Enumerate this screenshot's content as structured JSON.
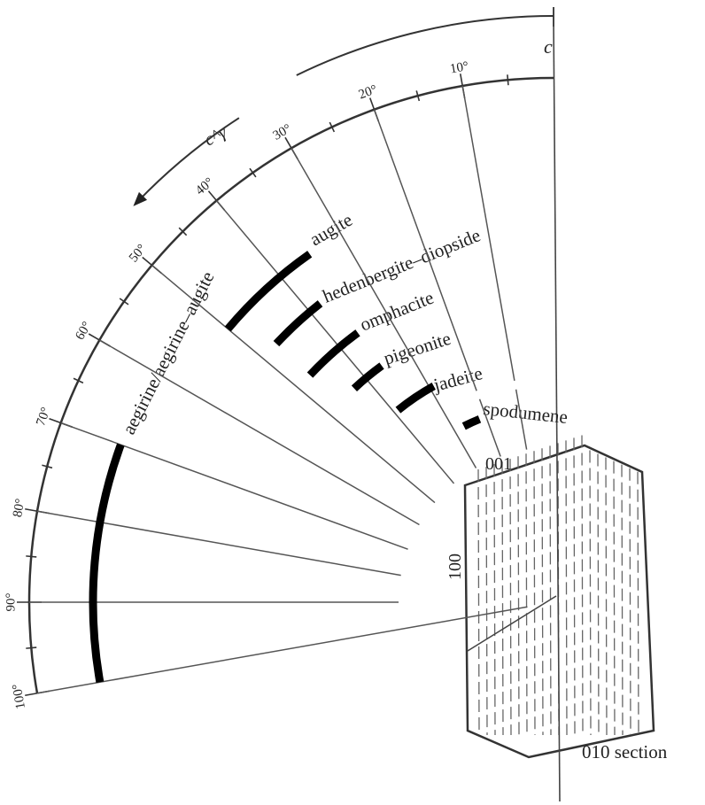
{
  "axis_label": "c",
  "angle_label": "c^γ",
  "degree_labels": [
    "10°",
    "20°",
    "30°",
    "40°",
    "50°",
    "60°",
    "70°",
    "80°",
    "90°",
    "100°"
  ],
  "minerals": [
    "augite",
    "hedenbergite–diopside",
    "omphacite",
    "pigeonite",
    "jadeite",
    "spodumene",
    "aegirine/aegirine–augite"
  ],
  "crystal": {
    "top_face": "001",
    "side_face": "100",
    "section": "010 section"
  }
}
